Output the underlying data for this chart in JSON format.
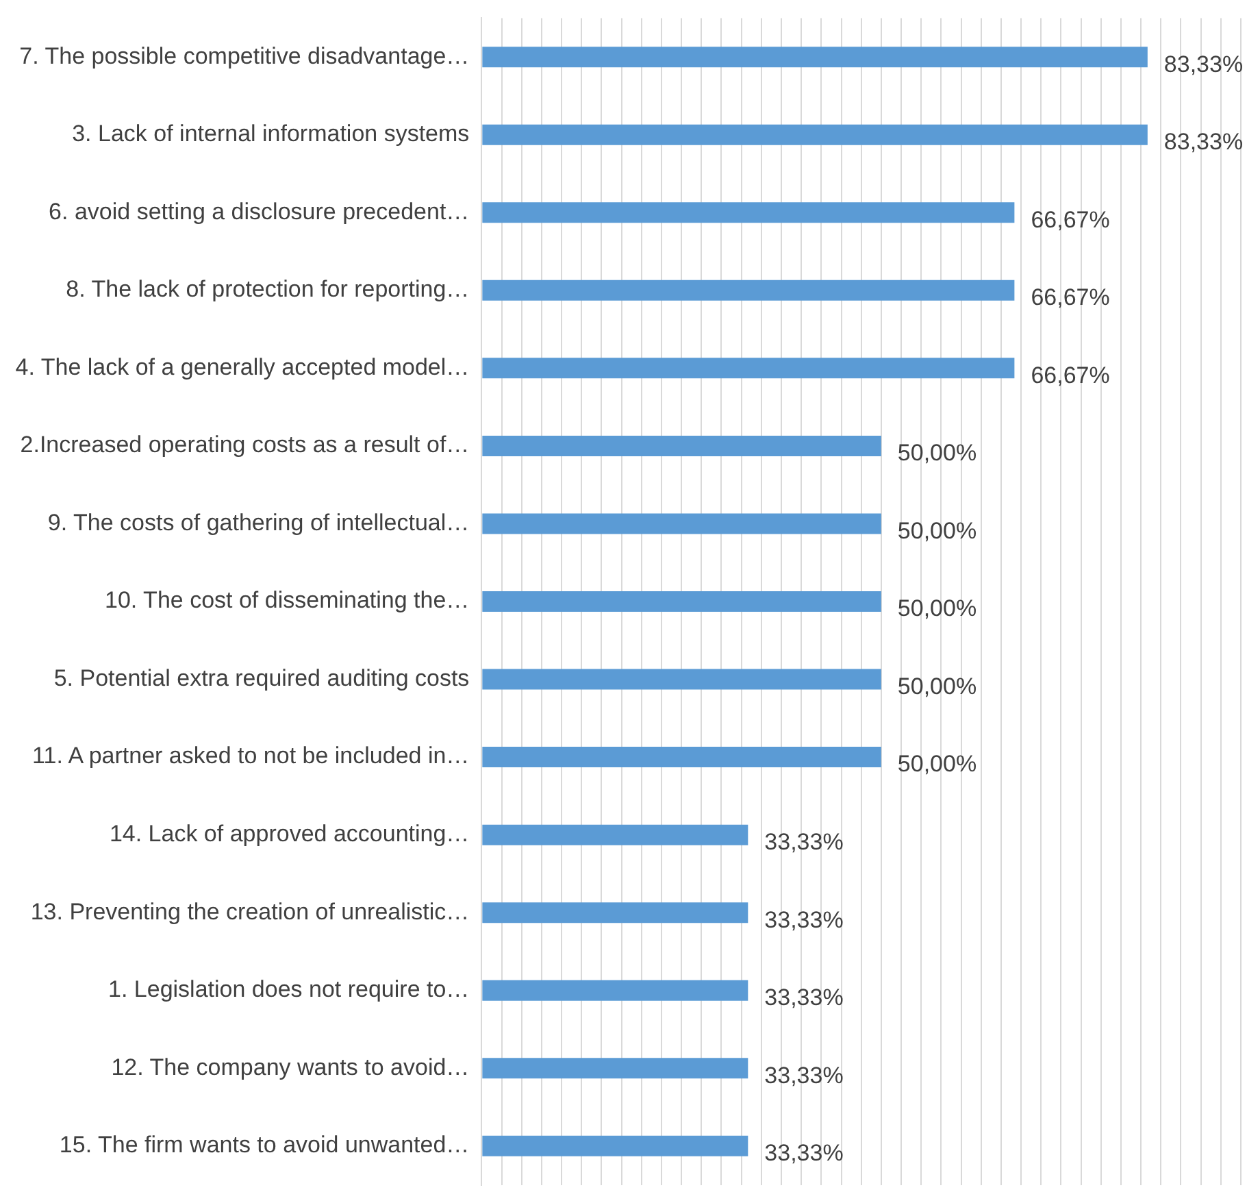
{
  "chart_data": {
    "type": "bar",
    "orientation": "horizontal",
    "categories": [
      "7. The possible competitive disadvantage…",
      "3. Lack of internal information systems",
      "6. avoid setting a disclosure precedent…",
      "8. The lack of protection for reporting…",
      "4. The lack of a generally accepted model…",
      "2.Increased operating costs as a result of…",
      "9. The costs of gathering of intellectual…",
      "10. The cost of disseminating the…",
      "5. Potential extra required auditing costs",
      "11. A partner asked to not be included in…",
      "14. Lack of approved accounting…",
      "13. Preventing the creation of unrealistic…",
      "1. Legislation does not require to…",
      "12. The company wants to avoid…",
      "15. The firm wants to avoid unwanted…"
    ],
    "values": [
      83.33,
      83.33,
      66.67,
      66.67,
      66.67,
      50,
      50,
      50,
      50,
      50,
      33.33,
      33.33,
      33.33,
      33.33,
      33.33
    ],
    "value_labels": [
      "83,33%",
      "83,33%",
      "66,67%",
      "66,67%",
      "66,67%",
      "50,00%",
      "50,00%",
      "50,00%",
      "50,00%",
      "50,00%",
      "33,33%",
      "33,33%",
      "33,33%",
      "33,33%",
      "33,33%"
    ],
    "color": "#5b9bd5",
    "xlim": [
      0,
      95
    ],
    "xticks": [
      {
        "value": 0,
        "label": null
      },
      {
        "value": 2.5,
        "label": null
      },
      {
        "value": 5,
        "label": null
      },
      {
        "value": 7.5,
        "label": null
      },
      {
        "value": 10,
        "label": null
      },
      {
        "value": 12.5,
        "label": null
      },
      {
        "value": 15,
        "label": null
      },
      {
        "value": 17.5,
        "label": null
      },
      {
        "value": 20,
        "label": null
      },
      {
        "value": 22.5,
        "label": null
      },
      {
        "value": 25,
        "label": null
      },
      {
        "value": 27.5,
        "label": null
      },
      {
        "value": 30,
        "label": null
      },
      {
        "value": 32.5,
        "label": null
      },
      {
        "value": 35,
        "label": null
      },
      {
        "value": 37.5,
        "label": null
      },
      {
        "value": 40,
        "label": null
      },
      {
        "value": 42.5,
        "label": null
      },
      {
        "value": 45,
        "label": null
      },
      {
        "value": 47.5,
        "label": null
      },
      {
        "value": 50,
        "label": null
      },
      {
        "value": 52.5,
        "label": null
      },
      {
        "value": 55,
        "label": null
      },
      {
        "value": 57.5,
        "label": null
      },
      {
        "value": 60,
        "label": null
      },
      {
        "value": 62.5,
        "label": null
      },
      {
        "value": 65,
        "label": null
      },
      {
        "value": 67.5,
        "label": null
      },
      {
        "value": 70,
        "label": null
      },
      {
        "value": 72.5,
        "label": null
      },
      {
        "value": 75,
        "label": null
      },
      {
        "value": 77.5,
        "label": null
      },
      {
        "value": 80,
        "label": null
      },
      {
        "value": 82.5,
        "label": null
      },
      {
        "value": 85,
        "label": null
      },
      {
        "value": 87.5,
        "label": null
      },
      {
        "value": 90,
        "label": null
      },
      {
        "value": 92.5,
        "label": null
      },
      {
        "value": 95,
        "label": null
      }
    ],
    "grid": "x",
    "tick_labels": "y",
    "legend": false
  }
}
